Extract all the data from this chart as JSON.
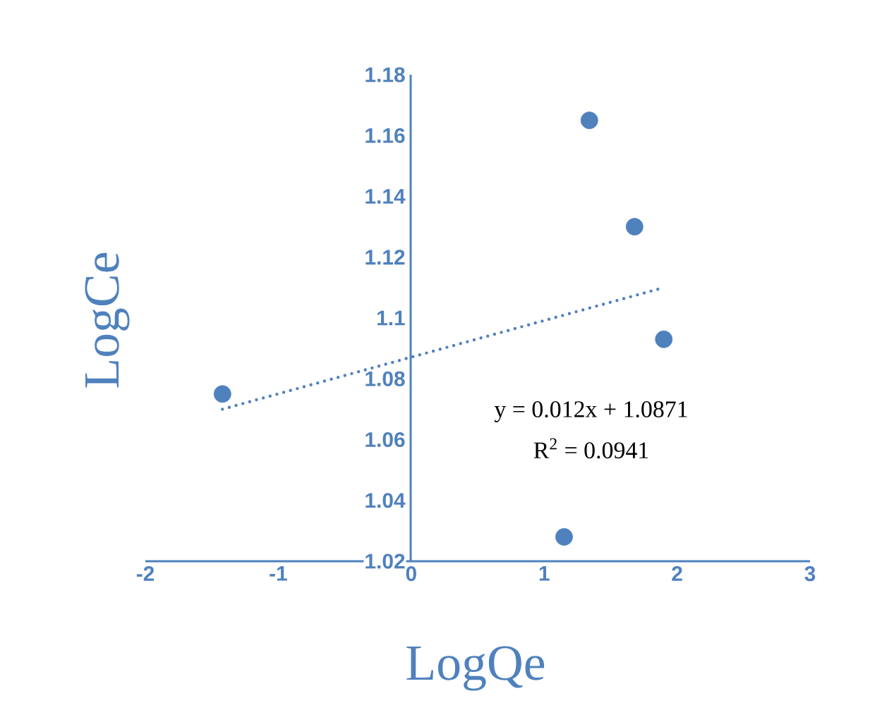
{
  "chart_data": {
    "type": "scatter",
    "xlabel": "LogQe",
    "ylabel": "LogCe",
    "annotations": [
      "y = 0.012x + 1.0871",
      "R$^{2}$ = 0.0941"
    ],
    "series": [
      {
        "color": "#4f81bd",
        "x": [
          -1.42,
          1.15,
          1.34,
          1.68,
          1.9
        ],
        "values": [
          1.075,
          1.028,
          1.165,
          1.13,
          1.093
        ],
        "marker": "circle"
      },
      {
        "type": "line",
        "color": "#4f81bd",
        "x": [
          -1.42,
          1.9
        ],
        "values": [
          1.07,
          1.11
        ],
        "line_style": "dotted",
        "marker": "none"
      }
    ],
    "xlim": [
      -2,
      3
    ],
    "ylim": [
      1.02,
      1.18
    ],
    "xticks": [
      -2,
      -1,
      0,
      1,
      2,
      3
    ],
    "yticks": [
      1.02,
      1.04,
      1.06,
      1.08,
      1.1,
      1.12,
      1.14,
      1.16,
      1.18
    ],
    "grid": false
  }
}
